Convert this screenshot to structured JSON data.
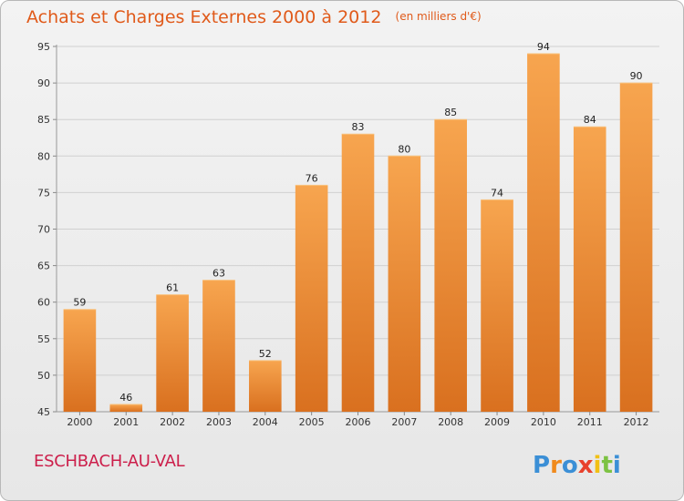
{
  "chart_data": {
    "type": "bar",
    "title": "Achats et Charges Externes 2000 à 2012",
    "unit_note": "(en milliers d'€)",
    "categories": [
      "2000",
      "2001",
      "2002",
      "2003",
      "2004",
      "2005",
      "2006",
      "2007",
      "2008",
      "2009",
      "2010",
      "2011",
      "2012"
    ],
    "values": [
      59,
      46,
      61,
      63,
      52,
      76,
      83,
      80,
      85,
      74,
      94,
      84,
      90
    ],
    "ylim": [
      45,
      95
    ],
    "yticks": [
      45,
      50,
      55,
      60,
      65,
      70,
      75,
      80,
      85,
      90,
      95
    ],
    "grid": true,
    "bar_color_top": "#f7a54f",
    "bar_color_bottom": "#d9701f"
  },
  "footer": {
    "commune": "ESCHBACH-AU-VAL",
    "brand": "Proxiti"
  },
  "colors": {
    "title": "#e05a1a",
    "commune": "#cc1f4b"
  }
}
